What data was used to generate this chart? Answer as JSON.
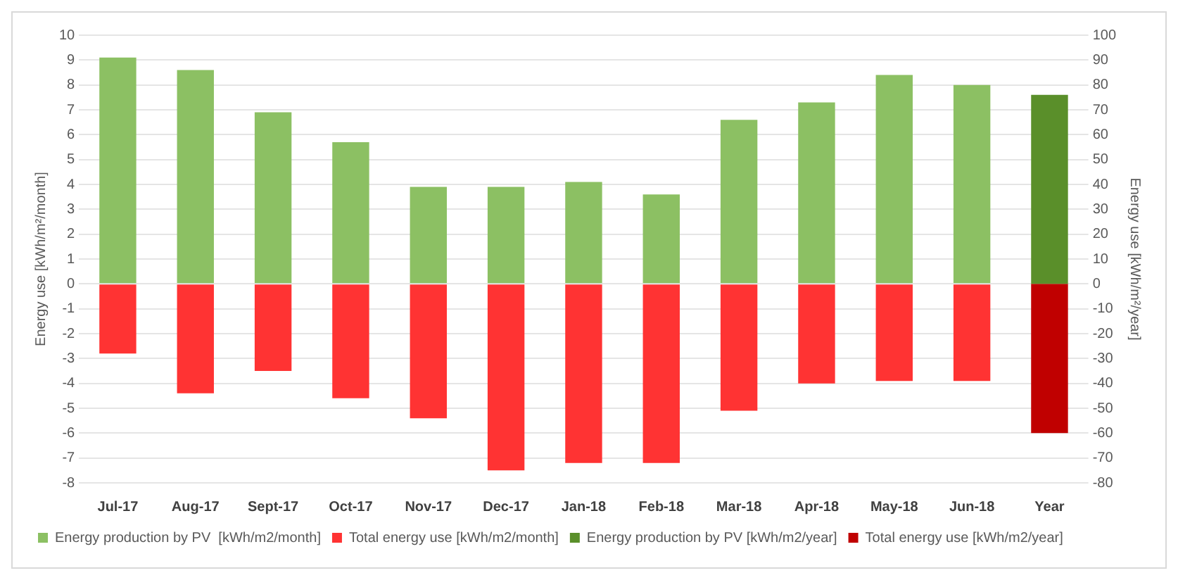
{
  "chart_data": {
    "type": "bar",
    "stacked": true,
    "categories": [
      "Jul-17",
      "Aug-17",
      "Sept-17",
      "Oct-17",
      "Nov-17",
      "Dec-17",
      "Jan-18",
      "Feb-18",
      "Mar-18",
      "Apr-18",
      "May-18",
      "Jun-18",
      "Year"
    ],
    "series": [
      {
        "name": "Energy production by PV  [kWh/m2/month]",
        "color": "#8cc063",
        "values": [
          9.1,
          8.6,
          6.9,
          5.7,
          3.9,
          3.9,
          4.1,
          3.6,
          6.6,
          7.3,
          8.4,
          8.0,
          null
        ]
      },
      {
        "name": "Total energy use [kWh/m2/month]",
        "color": "#ff3333",
        "values": [
          -2.8,
          -4.4,
          -3.5,
          -4.6,
          -5.4,
          -7.5,
          -7.2,
          -7.2,
          -5.1,
          -4.0,
          -3.9,
          -3.9,
          null
        ]
      },
      {
        "name": "Energy production by PV [kWh/m2/year]",
        "color": "#5a8f2a",
        "axis": "y2",
        "values": [
          null,
          null,
          null,
          null,
          null,
          null,
          null,
          null,
          null,
          null,
          null,
          null,
          76
        ]
      },
      {
        "name": "Total energy use [kWh/m2/year]",
        "color": "#c00000",
        "axis": "y2",
        "values": [
          null,
          null,
          null,
          null,
          null,
          null,
          null,
          null,
          null,
          null,
          null,
          null,
          -60
        ]
      }
    ],
    "ylabel": "Energy use [kWh/m²/month]",
    "y2label": "Energy use [kWh/m²/year]",
    "ylim": [
      -8,
      10
    ],
    "yticks": [
      -8,
      -7,
      -6,
      -5,
      -4,
      -3,
      -2,
      -1,
      0,
      1,
      2,
      3,
      4,
      5,
      6,
      7,
      8,
      9,
      10
    ],
    "y2lim": [
      -80,
      100
    ],
    "y2ticks": [
      -80,
      -70,
      -60,
      -50,
      -40,
      -30,
      -20,
      -10,
      0,
      10,
      20,
      30,
      40,
      50,
      60,
      70,
      80,
      90,
      100
    ],
    "grid": "y",
    "legend": "bottom"
  }
}
